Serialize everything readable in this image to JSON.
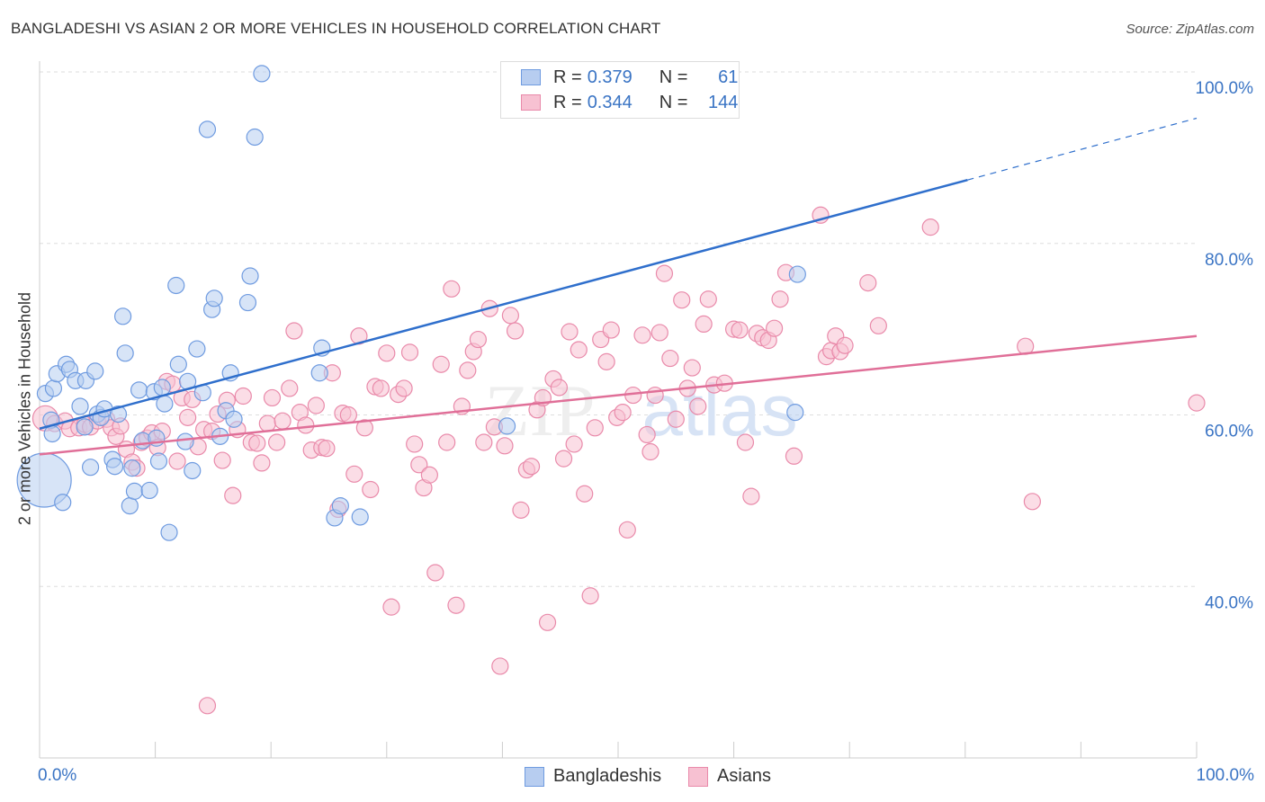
{
  "title": "BANGLADESHI VS ASIAN 2 OR MORE VEHICLES IN HOUSEHOLD CORRELATION CHART",
  "source": "Source: ZipAtlas.com",
  "watermark": {
    "zip": "ZIP",
    "atlas": "atlas"
  },
  "legend": {
    "rows": [
      {
        "r_label": "R =",
        "r_value": "0.379",
        "n_label": "N =",
        "n_value": "61"
      },
      {
        "r_label": "R =",
        "r_value": "0.344",
        "n_label": "N =",
        "n_value": "144"
      }
    ]
  },
  "bottom_legend": {
    "series1": "Bangladeshis",
    "series2": "Asians"
  },
  "colors": {
    "blue_fill": "#b7cdf0",
    "blue_stroke": "#6f9be0",
    "blue_line": "#2f6fcc",
    "pink_fill": "#f7c1d2",
    "pink_stroke": "#e98aaa",
    "pink_line": "#e06f98",
    "grid": "#dddddd",
    "axis_text": "#3a74c4"
  },
  "chart_data": {
    "type": "scatter",
    "xlabel": "",
    "ylabel": "2 or more Vehicles in Household",
    "xlim": [
      0,
      100
    ],
    "ylim": [
      20,
      100
    ],
    "x_tick_labels": [
      "0.0%",
      "100.0%"
    ],
    "y_ticks": [
      40,
      60,
      80,
      100
    ],
    "y_tick_labels": [
      "40.0%",
      "60.0%",
      "80.0%",
      "100.0%"
    ],
    "grid": true,
    "legend_position": "top-center",
    "series": [
      {
        "name": "Bangladeshis",
        "R": 0.379,
        "N": 61,
        "trend": {
          "x0": 0,
          "y0": 58.4,
          "x1": 80.2,
          "y1": 87.4,
          "dash_to_x": 100,
          "dash_to_y": 94.6
        },
        "points": [
          [
            0.4,
            52.4,
            30
          ],
          [
            0.5,
            62.5,
            9
          ],
          [
            1.0,
            59.4,
            9
          ],
          [
            1.1,
            57.8,
            9
          ],
          [
            1.2,
            63.1,
            9
          ],
          [
            1.5,
            64.8,
            9
          ],
          [
            2.0,
            49.8,
            9
          ],
          [
            2.3,
            65.9,
            9
          ],
          [
            2.6,
            65.3,
            9
          ],
          [
            3.1,
            64.0,
            9
          ],
          [
            3.5,
            61.0,
            9
          ],
          [
            3.9,
            58.6,
            9
          ],
          [
            4.0,
            64.0,
            9
          ],
          [
            4.4,
            53.9,
            9
          ],
          [
            4.8,
            65.1,
            9
          ],
          [
            5.0,
            60.1,
            9
          ],
          [
            5.3,
            59.7,
            9
          ],
          [
            5.6,
            60.7,
            9
          ],
          [
            6.3,
            54.8,
            9
          ],
          [
            6.5,
            54.0,
            9
          ],
          [
            6.8,
            60.1,
            9
          ],
          [
            7.2,
            71.5,
            9
          ],
          [
            7.4,
            67.2,
            9
          ],
          [
            7.8,
            49.4,
            9
          ],
          [
            8.0,
            53.8,
            9
          ],
          [
            8.2,
            51.1,
            9
          ],
          [
            8.6,
            62.9,
            9
          ],
          [
            8.9,
            57.0,
            9
          ],
          [
            9.5,
            51.2,
            9
          ],
          [
            9.9,
            62.7,
            9
          ],
          [
            10.1,
            57.3,
            9
          ],
          [
            10.3,
            54.6,
            9
          ],
          [
            10.6,
            63.2,
            9
          ],
          [
            10.8,
            61.3,
            9
          ],
          [
            11.2,
            46.3,
            9
          ],
          [
            11.8,
            75.1,
            9
          ],
          [
            12.0,
            65.9,
            9
          ],
          [
            12.6,
            56.9,
            9
          ],
          [
            12.8,
            63.9,
            9
          ],
          [
            13.2,
            53.5,
            9
          ],
          [
            13.6,
            67.7,
            9
          ],
          [
            14.1,
            62.6,
            9
          ],
          [
            14.5,
            93.3,
            9
          ],
          [
            14.9,
            72.3,
            9
          ],
          [
            15.1,
            73.6,
            9
          ],
          [
            15.6,
            57.5,
            9
          ],
          [
            16.1,
            60.5,
            9
          ],
          [
            16.5,
            64.9,
            9
          ],
          [
            16.8,
            59.5,
            9
          ],
          [
            18.0,
            73.1,
            9
          ],
          [
            18.2,
            76.2,
            9
          ],
          [
            18.6,
            92.4,
            9
          ],
          [
            19.2,
            99.8,
            9
          ],
          [
            24.2,
            64.9,
            9
          ],
          [
            24.4,
            67.8,
            9
          ],
          [
            25.5,
            48.0,
            9
          ],
          [
            26.0,
            49.4,
            9
          ],
          [
            27.7,
            48.1,
            9
          ],
          [
            40.4,
            58.7,
            9
          ],
          [
            65.3,
            60.3,
            9
          ],
          [
            65.5,
            76.4,
            9
          ]
        ]
      },
      {
        "name": "Asians",
        "R": 0.344,
        "N": 144,
        "trend": {
          "x0": 0,
          "y0": 55.4,
          "x1": 100,
          "y1": 69.2
        },
        "points": [
          [
            0.5,
            59.6,
            14
          ],
          [
            1.3,
            59.0,
            9
          ],
          [
            2.2,
            59.3,
            9
          ],
          [
            2.6,
            58.4,
            9
          ],
          [
            3.4,
            58.5,
            9
          ],
          [
            3.9,
            58.9,
            9
          ],
          [
            4.4,
            58.6,
            9
          ],
          [
            5.0,
            59.3,
            9
          ],
          [
            5.8,
            59.5,
            9
          ],
          [
            6.2,
            58.5,
            9
          ],
          [
            6.6,
            57.5,
            9
          ],
          [
            7.0,
            58.7,
            9
          ],
          [
            7.5,
            56.0,
            9
          ],
          [
            8.0,
            54.5,
            9
          ],
          [
            8.4,
            53.8,
            9
          ],
          [
            8.8,
            56.8,
            9
          ],
          [
            9.3,
            57.3,
            9
          ],
          [
            9.7,
            57.9,
            9
          ],
          [
            10.2,
            56.2,
            9
          ],
          [
            10.6,
            58.1,
            9
          ],
          [
            11.0,
            63.9,
            9
          ],
          [
            11.5,
            63.6,
            9
          ],
          [
            11.9,
            54.6,
            9
          ],
          [
            12.3,
            62.0,
            9
          ],
          [
            12.8,
            59.7,
            9
          ],
          [
            13.2,
            61.8,
            9
          ],
          [
            13.7,
            56.3,
            9
          ],
          [
            14.2,
            58.3,
            9
          ],
          [
            14.5,
            26.1,
            9
          ],
          [
            14.9,
            58.1,
            9
          ],
          [
            15.4,
            60.1,
            9
          ],
          [
            15.8,
            54.7,
            9
          ],
          [
            16.2,
            61.7,
            9
          ],
          [
            16.7,
            50.6,
            9
          ],
          [
            17.1,
            58.3,
            9
          ],
          [
            17.6,
            62.2,
            9
          ],
          [
            18.3,
            56.8,
            9
          ],
          [
            18.8,
            56.7,
            9
          ],
          [
            19.2,
            54.4,
            9
          ],
          [
            19.7,
            59.0,
            9
          ],
          [
            20.1,
            62.0,
            9
          ],
          [
            20.5,
            56.8,
            9
          ],
          [
            21.0,
            59.3,
            9
          ],
          [
            21.6,
            63.1,
            9
          ],
          [
            22.0,
            69.8,
            9
          ],
          [
            22.5,
            60.3,
            9
          ],
          [
            23.0,
            58.8,
            9
          ],
          [
            23.5,
            55.9,
            9
          ],
          [
            23.9,
            61.1,
            9
          ],
          [
            24.4,
            56.2,
            9
          ],
          [
            24.8,
            56.1,
            9
          ],
          [
            25.3,
            64.9,
            9
          ],
          [
            25.8,
            49.0,
            9
          ],
          [
            26.2,
            60.2,
            9
          ],
          [
            26.7,
            60.0,
            9
          ],
          [
            27.2,
            53.1,
            9
          ],
          [
            27.6,
            69.2,
            9
          ],
          [
            28.1,
            58.5,
            9
          ],
          [
            28.6,
            51.3,
            9
          ],
          [
            29.0,
            63.3,
            9
          ],
          [
            29.5,
            63.1,
            9
          ],
          [
            30.0,
            67.2,
            9
          ],
          [
            30.4,
            37.6,
            9
          ],
          [
            31.0,
            62.4,
            9
          ],
          [
            31.5,
            63.1,
            9
          ],
          [
            32.0,
            67.3,
            9
          ],
          [
            32.4,
            56.6,
            9
          ],
          [
            32.8,
            54.2,
            9
          ],
          [
            33.2,
            51.5,
            9
          ],
          [
            33.7,
            53.0,
            9
          ],
          [
            34.2,
            41.6,
            9
          ],
          [
            34.7,
            65.9,
            9
          ],
          [
            35.2,
            56.8,
            9
          ],
          [
            35.6,
            74.7,
            9
          ],
          [
            36.0,
            37.8,
            9
          ],
          [
            36.5,
            61.0,
            9
          ],
          [
            37.0,
            65.2,
            9
          ],
          [
            37.5,
            67.4,
            9
          ],
          [
            37.9,
            68.8,
            9
          ],
          [
            38.4,
            56.8,
            9
          ],
          [
            38.9,
            72.4,
            9
          ],
          [
            39.3,
            58.6,
            9
          ],
          [
            39.8,
            30.7,
            9
          ],
          [
            40.2,
            56.4,
            9
          ],
          [
            40.7,
            71.6,
            9
          ],
          [
            41.1,
            69.8,
            9
          ],
          [
            41.6,
            48.9,
            9
          ],
          [
            42.1,
            53.6,
            9
          ],
          [
            42.5,
            54.0,
            9
          ],
          [
            43.0,
            60.6,
            9
          ],
          [
            43.5,
            62.0,
            9
          ],
          [
            43.9,
            35.8,
            9
          ],
          [
            44.4,
            64.2,
            9
          ],
          [
            44.9,
            63.2,
            9
          ],
          [
            45.3,
            54.9,
            9
          ],
          [
            45.8,
            69.7,
            9
          ],
          [
            46.2,
            56.6,
            9
          ],
          [
            46.6,
            67.6,
            9
          ],
          [
            47.1,
            50.8,
            9
          ],
          [
            47.6,
            38.9,
            9
          ],
          [
            48.0,
            58.5,
            9
          ],
          [
            48.5,
            68.8,
            9
          ],
          [
            49.0,
            66.2,
            9
          ],
          [
            49.4,
            69.9,
            9
          ],
          [
            49.9,
            59.7,
            9
          ],
          [
            50.4,
            60.3,
            9
          ],
          [
            50.8,
            46.6,
            9
          ],
          [
            51.3,
            62.3,
            9
          ],
          [
            52.1,
            69.3,
            9
          ],
          [
            52.5,
            57.7,
            9
          ],
          [
            52.8,
            55.7,
            9
          ],
          [
            53.2,
            62.3,
            9
          ],
          [
            53.6,
            69.6,
            9
          ],
          [
            54.0,
            76.5,
            9
          ],
          [
            54.5,
            66.6,
            9
          ],
          [
            55.0,
            59.5,
            9
          ],
          [
            55.5,
            73.4,
            9
          ],
          [
            56.0,
            63.1,
            9
          ],
          [
            56.4,
            65.5,
            9
          ],
          [
            56.9,
            61.0,
            9
          ],
          [
            57.4,
            70.6,
            9
          ],
          [
            57.8,
            73.5,
            9
          ],
          [
            58.3,
            63.5,
            9
          ],
          [
            59.2,
            63.7,
            9
          ],
          [
            60.0,
            70.0,
            9
          ],
          [
            60.5,
            69.9,
            9
          ],
          [
            61.0,
            56.8,
            9
          ],
          [
            61.5,
            50.5,
            9
          ],
          [
            62.0,
            69.5,
            9
          ],
          [
            62.5,
            69.0,
            9
          ],
          [
            63.0,
            68.7,
            9
          ],
          [
            63.5,
            70.1,
            9
          ],
          [
            64.0,
            73.5,
            9
          ],
          [
            64.5,
            76.6,
            9
          ],
          [
            65.2,
            55.2,
            9
          ],
          [
            67.5,
            83.3,
            9
          ],
          [
            68.0,
            66.8,
            9
          ],
          [
            68.4,
            67.5,
            9
          ],
          [
            68.8,
            69.2,
            9
          ],
          [
            69.2,
            67.4,
            9
          ],
          [
            69.6,
            68.1,
            9
          ],
          [
            71.6,
            75.4,
            9
          ],
          [
            72.5,
            70.4,
            9
          ],
          [
            77.0,
            81.9,
            9
          ],
          [
            85.2,
            68.0,
            9
          ],
          [
            85.8,
            49.9,
            9
          ],
          [
            100.0,
            61.4,
            9
          ]
        ]
      }
    ]
  }
}
